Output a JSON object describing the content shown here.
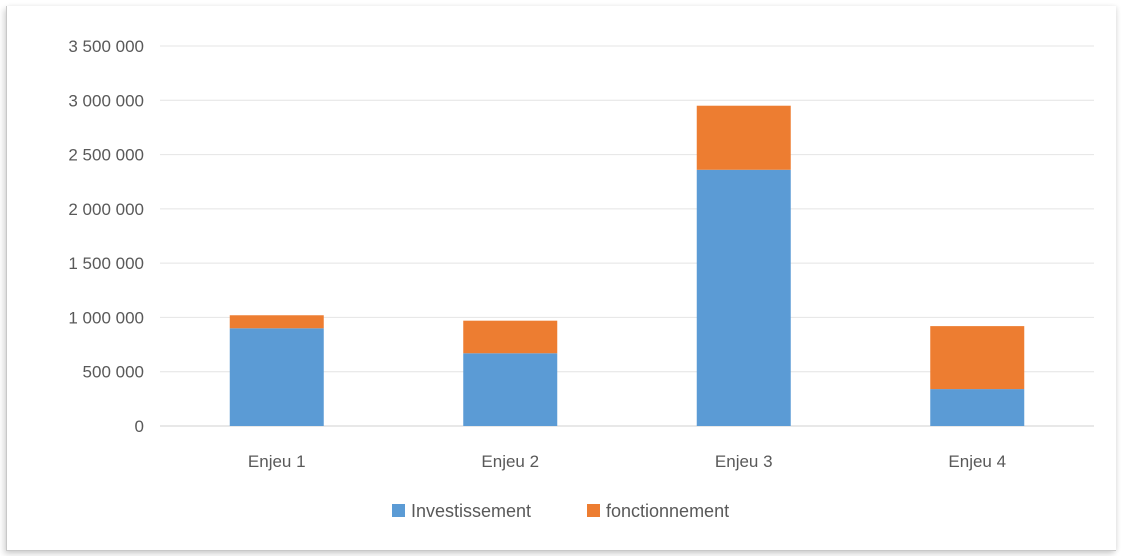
{
  "chart_data": {
    "type": "bar",
    "stacked": true,
    "categories": [
      "Enjeu 1",
      "Enjeu 2",
      "Enjeu 3",
      "Enjeu 4"
    ],
    "series": [
      {
        "name": "Investissement",
        "color": "#5b9bd5",
        "values": [
          900000,
          670000,
          2360000,
          340000
        ]
      },
      {
        "name": "fonctionnement",
        "color": "#ed7d31",
        "values": [
          120000,
          300000,
          590000,
          580000
        ]
      }
    ],
    "yticks": [
      "0",
      "500 000",
      "1 000 000",
      "1 500 000",
      "2 000 000",
      "2 500 000",
      "3 000 000",
      "3 500 000"
    ],
    "ylim": [
      0,
      3500000
    ],
    "grid": true,
    "legend_position": "bottom"
  }
}
